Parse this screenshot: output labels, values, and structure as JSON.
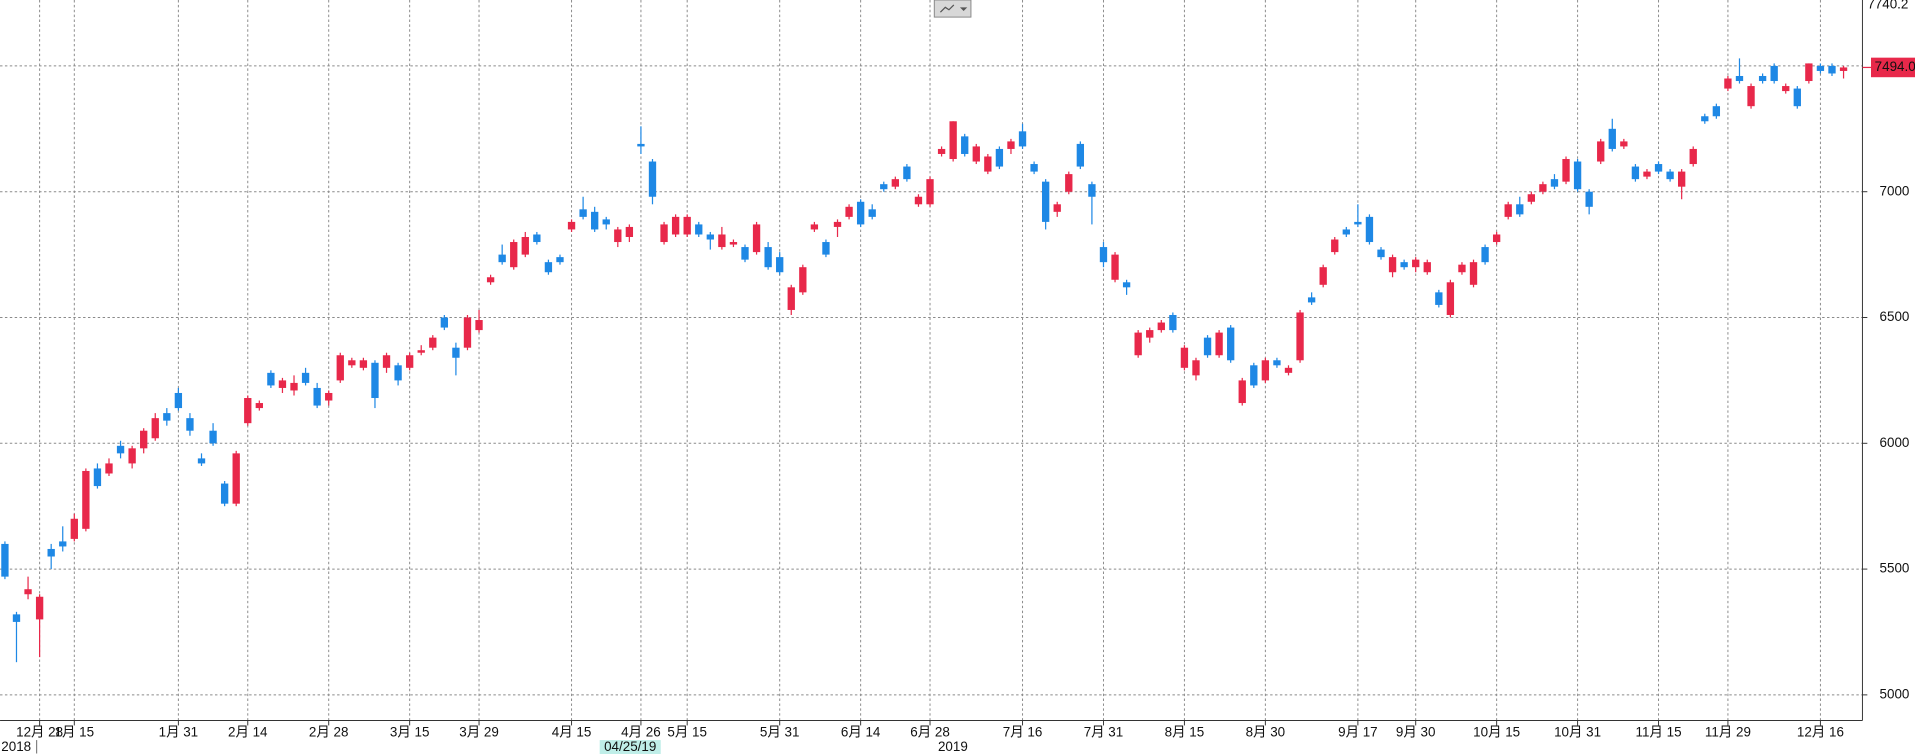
{
  "chart_data": {
    "type": "candlestick",
    "up_color": "#e8284a",
    "down_color": "#1e88e5",
    "ylim": [
      4898,
      7740.2
    ],
    "yticks": [
      5000,
      5500,
      6000,
      6500,
      7000
    ],
    "ygrid": [
      5000,
      5500,
      6000,
      6500,
      7000,
      7500
    ],
    "grid": true,
    "last_price": {
      "value": 7494,
      "label": "7494.0"
    },
    "cursor_date": "04/25/19",
    "year_labels": [
      "2018",
      "2019"
    ],
    "categories": [
      null,
      null,
      null,
      "12月 28",
      null,
      null,
      "1月 15",
      null,
      null,
      null,
      null,
      null,
      null,
      null,
      null,
      "1月 31",
      null,
      null,
      null,
      null,
      null,
      "2月 14",
      null,
      null,
      null,
      null,
      null,
      null,
      "2月 28",
      null,
      null,
      null,
      null,
      null,
      null,
      "3月 15",
      null,
      null,
      null,
      null,
      null,
      "3月 29",
      null,
      null,
      null,
      null,
      null,
      null,
      null,
      "4月 15",
      null,
      null,
      null,
      null,
      null,
      "4月 26",
      null,
      null,
      null,
      "5月 15",
      null,
      null,
      null,
      null,
      null,
      null,
      null,
      "5月 31",
      null,
      null,
      null,
      null,
      null,
      null,
      "6月 14",
      null,
      null,
      null,
      null,
      null,
      "6月 28",
      null,
      null,
      null,
      null,
      null,
      null,
      null,
      "7月 16",
      null,
      null,
      null,
      null,
      null,
      null,
      "7月 31",
      null,
      null,
      null,
      null,
      null,
      null,
      "8月 15",
      null,
      null,
      null,
      null,
      null,
      null,
      "8月 30",
      null,
      null,
      null,
      null,
      null,
      null,
      null,
      "9月 17",
      null,
      null,
      null,
      null,
      "9月 30",
      null,
      null,
      null,
      null,
      null,
      null,
      "10月 15",
      null,
      null,
      null,
      null,
      null,
      null,
      "10月 31",
      null,
      null,
      null,
      null,
      null,
      null,
      "11月 15",
      null,
      null,
      null,
      null,
      null,
      "11月 29",
      null,
      null,
      null,
      null,
      null,
      null,
      null,
      "12月 16",
      null,
      null
    ],
    "ohlc": [
      [
        5600,
        5610,
        5460,
        5470
      ],
      [
        5320,
        5330,
        5130,
        5290
      ],
      [
        5400,
        5470,
        5380,
        5420
      ],
      [
        5300,
        5400,
        5150,
        5390
      ],
      [
        5580,
        5600,
        5500,
        5550
      ],
      [
        5610,
        5670,
        5570,
        5590
      ],
      [
        5620,
        5720,
        5610,
        5700
      ],
      [
        5660,
        5900,
        5650,
        5890
      ],
      [
        5900,
        5920,
        5820,
        5830
      ],
      [
        5880,
        5940,
        5870,
        5920
      ],
      [
        5990,
        6010,
        5940,
        5960
      ],
      [
        5920,
        5990,
        5900,
        5980
      ],
      [
        5980,
        6060,
        5960,
        6050
      ],
      [
        6020,
        6120,
        6010,
        6100
      ],
      [
        6120,
        6140,
        6070,
        6090
      ],
      [
        6200,
        6220,
        6130,
        6140
      ],
      [
        6100,
        6120,
        6030,
        6050
      ],
      [
        5940,
        5960,
        5910,
        5920
      ],
      [
        6050,
        6080,
        5990,
        6000
      ],
      [
        5840,
        5850,
        5750,
        5760
      ],
      [
        5760,
        5970,
        5750,
        5960
      ],
      [
        6080,
        6190,
        6070,
        6180
      ],
      [
        6140,
        6170,
        6130,
        6160
      ],
      [
        6280,
        6290,
        6220,
        6230
      ],
      [
        6220,
        6260,
        6200,
        6250
      ],
      [
        6210,
        6270,
        6190,
        6240
      ],
      [
        6280,
        6300,
        6230,
        6240
      ],
      [
        6220,
        6240,
        6140,
        6150
      ],
      [
        6170,
        6210,
        6150,
        6200
      ],
      [
        6250,
        6360,
        6240,
        6350
      ],
      [
        6310,
        6340,
        6300,
        6330
      ],
      [
        6300,
        6340,
        6290,
        6330
      ],
      [
        6320,
        6330,
        6140,
        6180
      ],
      [
        6300,
        6360,
        6280,
        6350
      ],
      [
        6310,
        6320,
        6230,
        6250
      ],
      [
        6300,
        6360,
        6290,
        6350
      ],
      [
        6360,
        6390,
        6350,
        6370
      ],
      [
        6380,
        6430,
        6370,
        6420
      ],
      [
        6500,
        6510,
        6450,
        6460
      ],
      [
        6380,
        6400,
        6270,
        6340
      ],
      [
        6380,
        6510,
        6370,
        6500
      ],
      [
        6450,
        6530,
        6440,
        6490
      ],
      [
        6640,
        6670,
        6630,
        6660
      ],
      [
        6750,
        6790,
        6710,
        6720
      ],
      [
        6700,
        6810,
        6690,
        6800
      ],
      [
        6750,
        6840,
        6740,
        6820
      ],
      [
        6830,
        6840,
        6790,
        6800
      ],
      [
        6720,
        6730,
        6670,
        6680
      ],
      [
        6740,
        6750,
        6710,
        6720
      ],
      [
        6850,
        6890,
        6840,
        6880
      ],
      [
        6930,
        6980,
        6890,
        6900
      ],
      [
        6920,
        6940,
        6840,
        6850
      ],
      [
        6890,
        6900,
        6850,
        6870
      ],
      [
        6800,
        6860,
        6780,
        6850
      ],
      [
        6820,
        6870,
        6800,
        6860
      ],
      [
        7190,
        7260,
        7150,
        7180
      ],
      [
        7120,
        7130,
        6950,
        6980
      ],
      [
        6800,
        6880,
        6790,
        6870
      ],
      [
        6830,
        6910,
        6820,
        6900
      ],
      [
        6830,
        6910,
        6820,
        6900
      ],
      [
        6870,
        6880,
        6820,
        6830
      ],
      [
        6830,
        6840,
        6770,
        6810
      ],
      [
        6780,
        6860,
        6770,
        6830
      ],
      [
        6790,
        6810,
        6780,
        6800
      ],
      [
        6780,
        6790,
        6720,
        6730
      ],
      [
        6760,
        6880,
        6750,
        6870
      ],
      [
        6780,
        6800,
        6690,
        6700
      ],
      [
        6740,
        6760,
        6670,
        6680
      ],
      [
        6530,
        6630,
        6510,
        6620
      ],
      [
        6600,
        6710,
        6590,
        6700
      ],
      [
        6850,
        6880,
        6840,
        6870
      ],
      [
        6800,
        6810,
        6740,
        6750
      ],
      [
        6860,
        6890,
        6820,
        6880
      ],
      [
        6900,
        6950,
        6890,
        6940
      ],
      [
        6960,
        6970,
        6860,
        6870
      ],
      [
        6930,
        6950,
        6890,
        6900
      ],
      [
        7030,
        7040,
        7000,
        7010
      ],
      [
        7020,
        7060,
        7010,
        7050
      ],
      [
        7100,
        7110,
        7040,
        7050
      ],
      [
        6950,
        6990,
        6940,
        6980
      ],
      [
        6950,
        7060,
        6940,
        7050
      ],
      [
        7150,
        7180,
        7140,
        7170
      ],
      [
        7130,
        7280,
        7120,
        7280
      ],
      [
        7220,
        7230,
        7140,
        7150
      ],
      [
        7120,
        7190,
        7110,
        7180
      ],
      [
        7080,
        7150,
        7070,
        7140
      ],
      [
        7170,
        7180,
        7090,
        7100
      ],
      [
        7170,
        7210,
        7150,
        7200
      ],
      [
        7240,
        7270,
        7170,
        7180
      ],
      [
        7110,
        7120,
        7070,
        7080
      ],
      [
        7040,
        7050,
        6850,
        6880
      ],
      [
        6920,
        6960,
        6900,
        6950
      ],
      [
        7000,
        7080,
        6990,
        7070
      ],
      [
        7190,
        7200,
        7090,
        7100
      ],
      [
        7030,
        7040,
        6870,
        6980
      ],
      [
        6780,
        6800,
        6700,
        6720
      ],
      [
        6650,
        6760,
        6640,
        6750
      ],
      [
        6640,
        6650,
        6590,
        6620
      ],
      [
        6350,
        6450,
        6340,
        6440
      ],
      [
        6420,
        6460,
        6400,
        6450
      ],
      [
        6450,
        6490,
        6440,
        6480
      ],
      [
        6510,
        6520,
        6440,
        6450
      ],
      [
        6300,
        6390,
        6290,
        6380
      ],
      [
        6270,
        6340,
        6250,
        6330
      ],
      [
        6420,
        6430,
        6340,
        6350
      ],
      [
        6350,
        6450,
        6340,
        6440
      ],
      [
        6460,
        6470,
        6320,
        6330
      ],
      [
        6160,
        6260,
        6150,
        6250
      ],
      [
        6310,
        6320,
        6220,
        6230
      ],
      [
        6250,
        6340,
        6240,
        6330
      ],
      [
        6330,
        6340,
        6300,
        6310
      ],
      [
        6280,
        6310,
        6270,
        6300
      ],
      [
        6330,
        6530,
        6320,
        6520
      ],
      [
        6580,
        6600,
        6550,
        6560
      ],
      [
        6630,
        6710,
        6620,
        6700
      ],
      [
        6760,
        6820,
        6750,
        6810
      ],
      [
        6850,
        6860,
        6820,
        6830
      ],
      [
        6880,
        6950,
        6860,
        6870
      ],
      [
        6900,
        6910,
        6790,
        6800
      ],
      [
        6770,
        6780,
        6730,
        6740
      ],
      [
        6680,
        6750,
        6660,
        6740
      ],
      [
        6720,
        6730,
        6690,
        6700
      ],
      [
        6700,
        6740,
        6680,
        6730
      ],
      [
        6680,
        6730,
        6670,
        6720
      ],
      [
        6600,
        6610,
        6540,
        6550
      ],
      [
        6510,
        6650,
        6500,
        6640
      ],
      [
        6680,
        6720,
        6670,
        6710
      ],
      [
        6630,
        6730,
        6620,
        6720
      ],
      [
        6780,
        6790,
        6710,
        6720
      ],
      [
        6800,
        6840,
        6790,
        6830
      ],
      [
        6900,
        6960,
        6890,
        6950
      ],
      [
        6950,
        6980,
        6900,
        6910
      ],
      [
        6960,
        7000,
        6950,
        6990
      ],
      [
        7000,
        7040,
        6990,
        7030
      ],
      [
        7050,
        7070,
        7010,
        7020
      ],
      [
        7040,
        7140,
        7030,
        7130
      ],
      [
        7120,
        7130,
        7000,
        7010
      ],
      [
        7000,
        7010,
        6910,
        6940
      ],
      [
        7120,
        7210,
        7110,
        7200
      ],
      [
        7250,
        7290,
        7160,
        7170
      ],
      [
        7180,
        7210,
        7170,
        7200
      ],
      [
        7100,
        7110,
        7040,
        7050
      ],
      [
        7060,
        7090,
        7050,
        7080
      ],
      [
        7110,
        7120,
        7070,
        7080
      ],
      [
        7080,
        7090,
        7040,
        7050
      ],
      [
        7020,
        7090,
        6970,
        7080
      ],
      [
        7110,
        7180,
        7100,
        7170
      ],
      [
        7300,
        7310,
        7270,
        7280
      ],
      [
        7340,
        7350,
        7290,
        7300
      ],
      [
        7410,
        7460,
        7400,
        7450
      ],
      [
        7460,
        7530,
        7430,
        7440
      ],
      [
        7340,
        7430,
        7330,
        7420
      ],
      [
        7460,
        7470,
        7430,
        7440
      ],
      [
        7500,
        7510,
        7430,
        7440
      ],
      [
        7400,
        7430,
        7390,
        7420
      ],
      [
        7410,
        7420,
        7330,
        7340
      ],
      [
        7440,
        7510,
        7430,
        7510
      ],
      [
        7500,
        7510,
        7470,
        7480
      ],
      [
        7500,
        7510,
        7460,
        7470
      ],
      [
        7480,
        7500,
        7450,
        7494
      ]
    ]
  }
}
